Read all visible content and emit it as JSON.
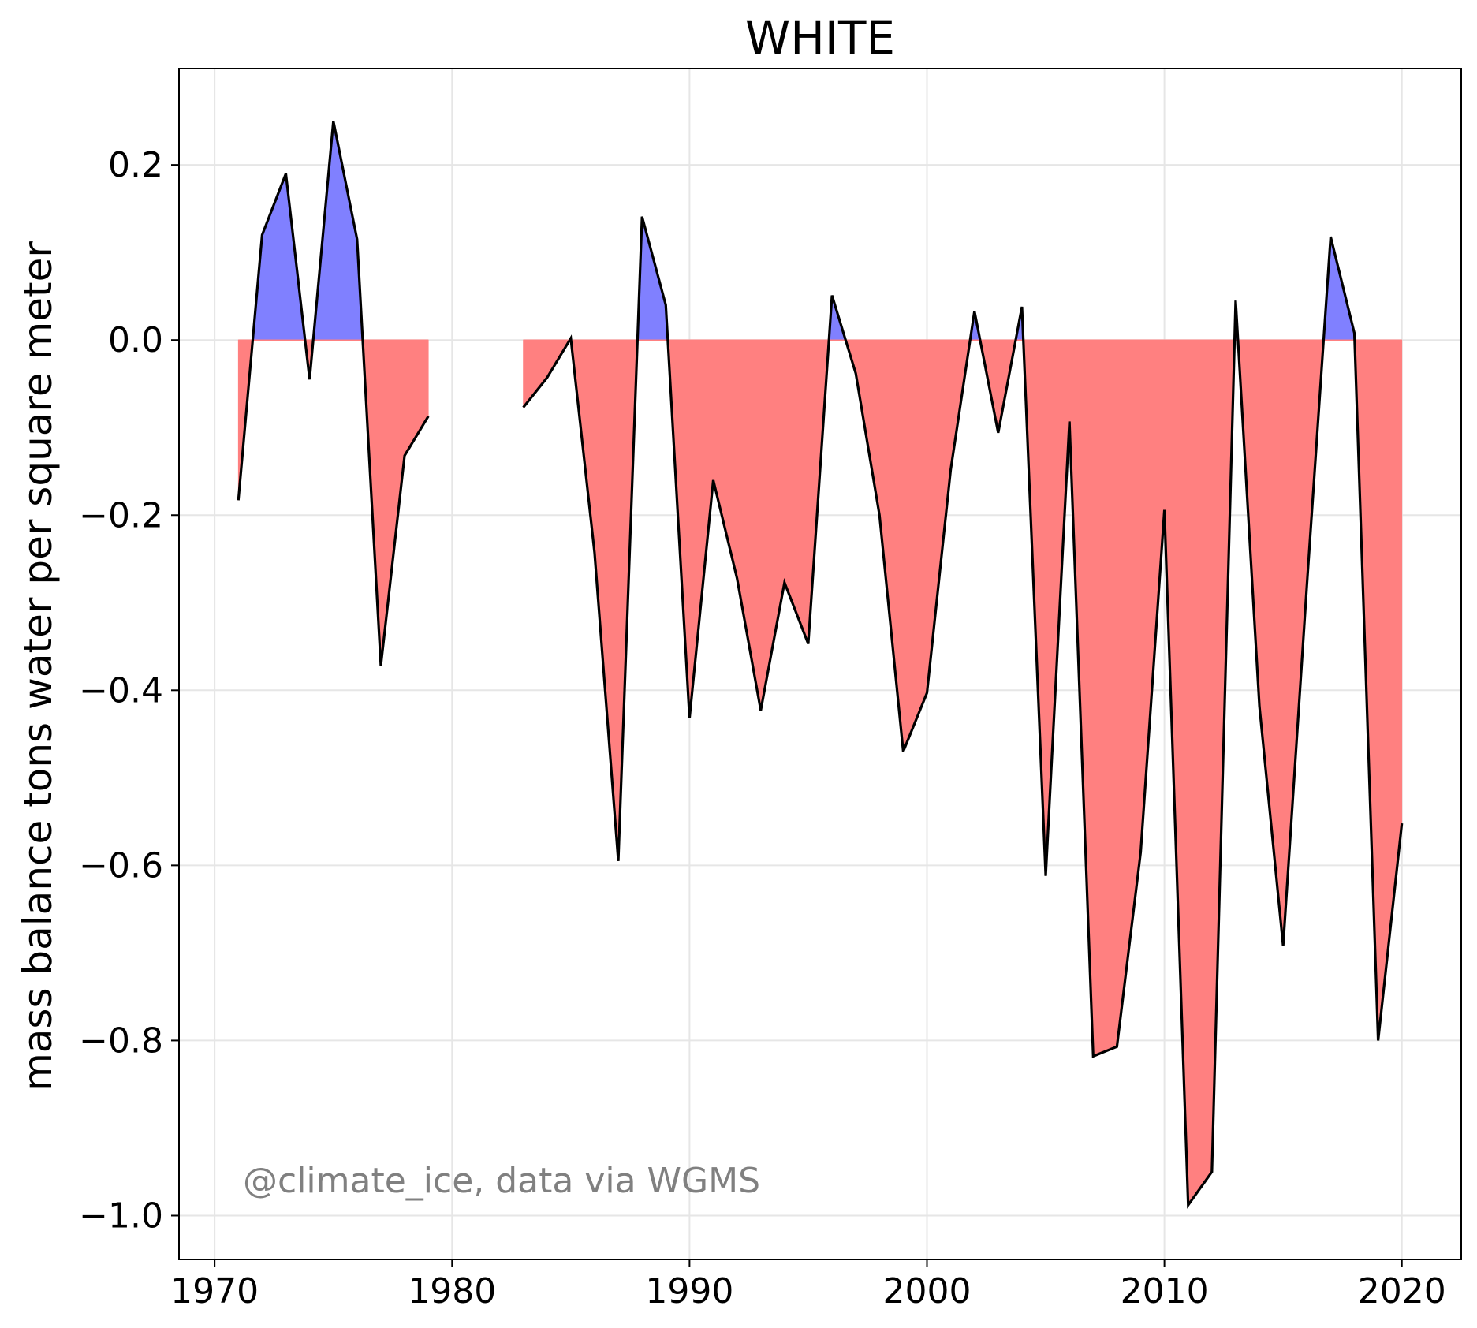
{
  "chart_data": {
    "type": "area",
    "title": "WHITE",
    "xlabel": "",
    "ylabel": "mass balance tons water per square meter",
    "xlim": [
      1968.5,
      2022.5
    ],
    "ylim": [
      -1.05,
      0.31
    ],
    "xticks": [
      1970,
      1980,
      1990,
      2000,
      2010,
      2020
    ],
    "xtick_labels": [
      "1970",
      "1980",
      "1990",
      "2000",
      "2010",
      "2020"
    ],
    "yticks": [
      0.2,
      0.0,
      -0.2,
      -0.4,
      -0.6,
      -0.8,
      -1.0
    ],
    "ytick_labels": [
      "0.2",
      "0.0",
      "−0.2",
      "−0.4",
      "−0.6",
      "−0.8",
      "−1.0"
    ],
    "grid": true,
    "annotation": "@climate_ice, data via WGMS",
    "colors": {
      "positive_fill": "#8080ff",
      "negative_fill": "#ff8080",
      "line": "#000000",
      "grid": "#e6e6e6",
      "annotation": "#808080"
    },
    "segments": [
      {
        "x": [
          1971,
          1972,
          1973,
          1974,
          1975,
          1976,
          1977,
          1978,
          1979
        ],
        "y": [
          -0.183,
          0.12,
          0.19,
          -0.045,
          0.25,
          0.115,
          -0.372,
          -0.132,
          -0.087
        ]
      },
      {
        "x": [
          1983,
          1984,
          1985,
          1986,
          1987,
          1988,
          1989,
          1990,
          1991,
          1992,
          1993,
          1994,
          1995,
          1996,
          1997,
          1998,
          1999,
          2000,
          2001,
          2002,
          2003,
          2004,
          2005,
          2006,
          2007,
          2008,
          2009,
          2010,
          2011,
          2012,
          2013,
          2014,
          2015,
          2016,
          2017,
          2018,
          2019,
          2020
        ],
        "y": [
          -0.077,
          -0.043,
          0.002,
          -0.243,
          -0.595,
          0.141,
          0.04,
          -0.432,
          -0.16,
          -0.272,
          -0.423,
          -0.277,
          -0.347,
          0.051,
          -0.038,
          -0.2,
          -0.47,
          -0.403,
          -0.148,
          0.033,
          -0.106,
          0.038,
          -0.612,
          -0.093,
          -0.818,
          -0.807,
          -0.585,
          -0.194,
          -0.988,
          -0.95,
          0.045,
          -0.418,
          -0.692,
          -0.28,
          0.118,
          0.008,
          -0.8,
          -0.552
        ]
      }
    ]
  }
}
